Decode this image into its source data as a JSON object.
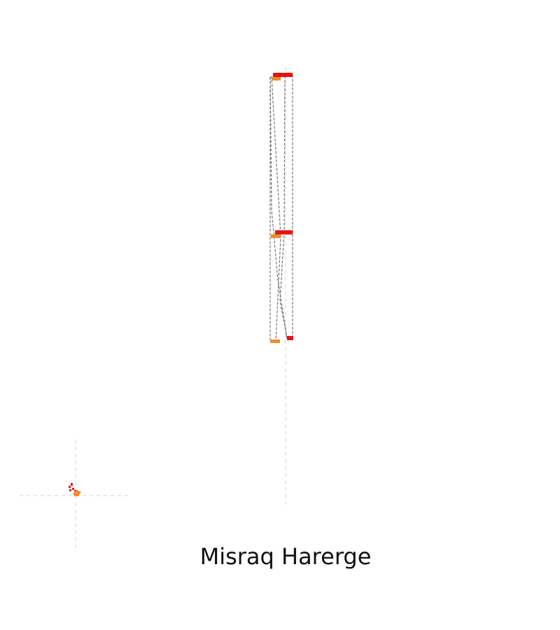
{
  "map": {
    "title": "Misraq Harerge",
    "colors": {
      "crosshair": "#cfcfcf",
      "outline": "#777777",
      "red": "#e8130f",
      "orange": "#f08c26"
    }
  }
}
